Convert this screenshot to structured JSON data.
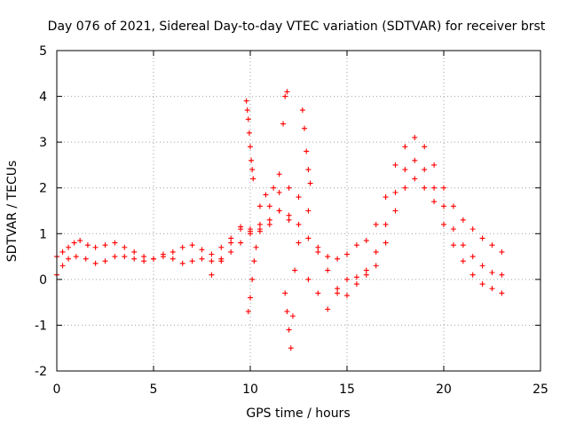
{
  "chart_data": {
    "type": "scatter",
    "title": "Day 076 of 2021, Sidereal Day-to-day VTEC variation (SDTVAR) for receiver brst",
    "xlabel": "GPS time / hours",
    "ylabel": "SDTVAR / TECUs",
    "xlim": [
      0,
      25
    ],
    "ylim": [
      -2,
      5
    ],
    "xticks": [
      0,
      5,
      10,
      15,
      20,
      25
    ],
    "yticks": [
      -2,
      -1,
      0,
      1,
      2,
      3,
      4,
      5
    ],
    "grid": true,
    "marker": "+",
    "series": [
      {
        "name": "SDTVAR",
        "color": "#ff0000",
        "tracks": [
          {
            "x": [
              0,
              0.3,
              0.6,
              0.9,
              1.2,
              1.6,
              2,
              2.5,
              3,
              3.5,
              4,
              4.5,
              5,
              5.5,
              6,
              6.5,
              7,
              7.5,
              8,
              8.5,
              9,
              9.5,
              10,
              10.5,
              11,
              11.5,
              12,
              12.5,
              13,
              13.5,
              14,
              14.5,
              15,
              15.5,
              16,
              16.5,
              17,
              17.5,
              18,
              18.5,
              19,
              19.5,
              20,
              20.5,
              21,
              21.5,
              22,
              22.5,
              23
            ],
            "y": [
              0.5,
              0.6,
              0.7,
              0.8,
              0.85,
              0.75,
              0.7,
              0.75,
              0.8,
              0.7,
              0.6,
              0.5,
              0.45,
              0.5,
              0.6,
              0.7,
              0.75,
              0.65,
              0.55,
              0.7,
              0.9,
              1.1,
              1.05,
              1.1,
              1.3,
              1.5,
              1.4,
              1.2,
              0.9,
              0.7,
              0.5,
              0.45,
              0.55,
              0.75,
              0.85,
              1.2,
              1.8,
              2.5,
              2.9,
              3.1,
              2.9,
              2.5,
              2.0,
              1.6,
              1.3,
              1.1,
              0.9,
              0.75,
              0.6
            ]
          },
          {
            "x": [
              0,
              0.3,
              0.6,
              1,
              1.5,
              2,
              2.5,
              3,
              3.5,
              4,
              4.5,
              5,
              5.5,
              6,
              6.5,
              7,
              7.5,
              8,
              8.5,
              9,
              9.5,
              10,
              10.5,
              11,
              11.5,
              12,
              12.5,
              13,
              13.5,
              14,
              14.5,
              15,
              15.5,
              16,
              16.5,
              17,
              17.5,
              18,
              18.5,
              19,
              19.5,
              20,
              20.5,
              21,
              21.5,
              22,
              22.5,
              23
            ],
            "y": [
              0.1,
              0.3,
              0.45,
              0.5,
              0.45,
              0.35,
              0.4,
              0.5,
              0.5,
              0.45,
              0.4,
              0.45,
              0.55,
              0.45,
              0.35,
              0.4,
              0.45,
              0.4,
              0.45,
              0.6,
              0.8,
              1.0,
              1.2,
              1.6,
              1.9,
              2.0,
              1.8,
              1.5,
              0.6,
              0.2,
              -0.2,
              -0.35,
              -0.1,
              0.2,
              0.6,
              1.2,
              1.9,
              2.4,
              2.6,
              2.4,
              2.0,
              1.6,
              1.1,
              0.75,
              0.5,
              0.3,
              0.15,
              0.1
            ]
          },
          {
            "x": [
              8,
              8.5,
              9,
              9.5,
              10,
              10.5,
              11,
              11.5,
              12,
              12.5,
              13,
              13.5,
              14,
              14.5,
              15,
              15.5,
              16,
              16.5,
              17,
              17.5,
              18,
              18.5,
              19,
              19.5,
              20,
              20.5,
              21,
              21.5,
              22,
              22.5,
              23
            ],
            "y": [
              0.1,
              0.4,
              0.8,
              1.15,
              1.1,
              1.05,
              1.2,
              1.5,
              1.3,
              0.8,
              0.0,
              -0.3,
              -0.65,
              -0.3,
              0.0,
              0.05,
              0.1,
              0.3,
              0.8,
              1.5,
              2.0,
              2.2,
              2.0,
              1.7,
              1.2,
              0.75,
              0.4,
              0.1,
              -0.1,
              -0.2,
              -0.3
            ]
          },
          {
            "x": [
              9.8,
              9.85,
              9.9,
              9.95,
              10.0,
              10.05,
              10.1,
              10.15
            ],
            "y": [
              3.9,
              3.7,
              3.5,
              3.2,
              2.9,
              2.6,
              2.4,
              2.2
            ]
          },
          {
            "x": [
              10.5,
              10.8,
              11.2,
              11.5,
              11.7,
              11.8,
              11.9
            ],
            "y": [
              1.6,
              1.85,
              2.0,
              2.3,
              3.4,
              4.0,
              4.1
            ]
          },
          {
            "x": [
              11.8,
              11.9,
              12.0,
              12.1,
              12.2,
              12.3
            ],
            "y": [
              -0.3,
              -0.7,
              -1.1,
              -1.5,
              -0.8,
              0.2
            ]
          },
          {
            "x": [
              12.7,
              12.8,
              12.9,
              13.0,
              13.1
            ],
            "y": [
              3.7,
              3.3,
              2.8,
              2.4,
              2.1
            ]
          },
          {
            "x": [
              9.9,
              10.0,
              10.1,
              10.2,
              10.3
            ],
            "y": [
              -0.7,
              -0.4,
              0.0,
              0.4,
              0.7
            ]
          }
        ]
      }
    ]
  }
}
